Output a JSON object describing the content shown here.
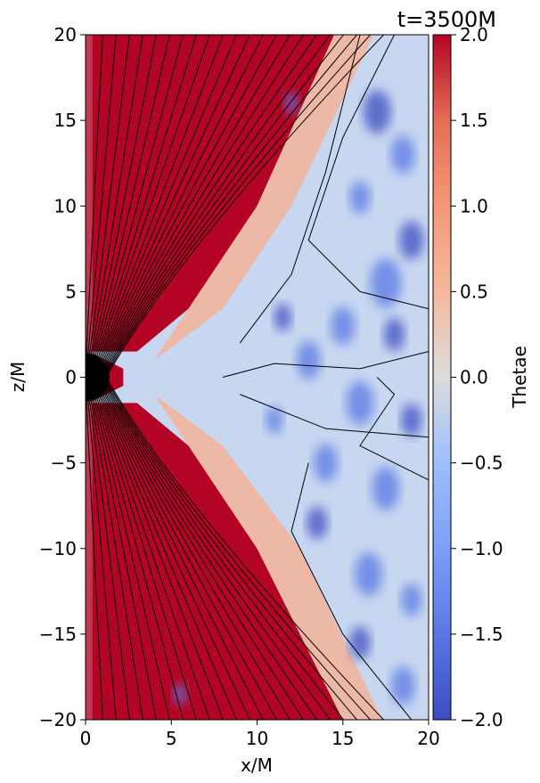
{
  "chart_data": {
    "type": "heatmap",
    "title": "t=3500M",
    "xlabel": "x/M",
    "ylabel": "z/M",
    "xlim": [
      0,
      20
    ],
    "ylim": [
      -20,
      20
    ],
    "xticks": [
      0,
      5,
      10,
      15,
      20
    ],
    "yticks": [
      -20,
      -15,
      -10,
      -5,
      0,
      5,
      10,
      15,
      20
    ],
    "colorbar": {
      "label": "Thetae",
      "range": [
        -2.0,
        2.0
      ],
      "ticks": [
        -2.0,
        -1.5,
        -1.0,
        -0.5,
        0.0,
        0.5,
        1.0,
        1.5,
        2.0
      ],
      "tick_labels": [
        "−2.0",
        "−1.5",
        "−1.0",
        "−0.5",
        "0.0",
        "0.5",
        "1.0",
        "1.5",
        "2.0"
      ],
      "colormap": "coolwarm"
    },
    "black_hole": {
      "x": 0,
      "z": 0,
      "radius": 1.4,
      "color": "#000000"
    },
    "contour_color": "#000000",
    "grid": false,
    "colors": {
      "high": "#b40426",
      "mid": "#dddcdc",
      "low": "#3b4cc0"
    }
  }
}
